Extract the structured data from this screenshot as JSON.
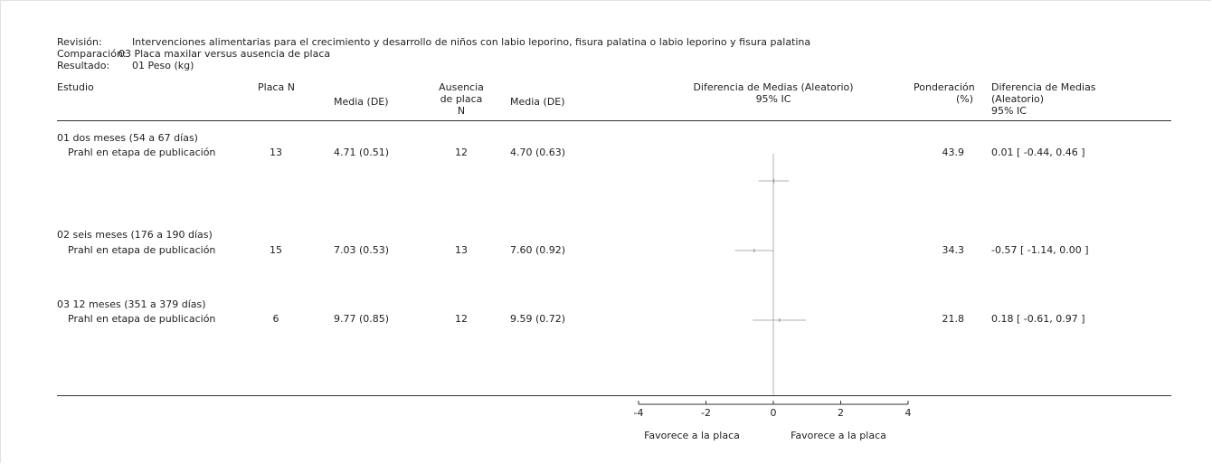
{
  "meta": {
    "review_label": "Revisión:",
    "review_value": "Intervenciones alimentarias para el crecimiento y desarrollo de niños con labio leporino, fisura palatina o labio leporino y fisura palatina",
    "comparison_label": "Comparación:",
    "comparison_value": "03 Placa maxilar versus ausencia de placa",
    "outcome_label": "Resultado:",
    "outcome_value": "01 Peso (kg)"
  },
  "headers": {
    "study": "Estudio",
    "n1": "Placa N",
    "mean1": "Media (DE)",
    "n2_line1": "Ausencia",
    "n2_line2": "de placa",
    "n2_line3": "N",
    "mean2": "Media (DE)",
    "plot_line1": "Diferencia de Medias  (Aleatorio)",
    "plot_line2": "95% IC",
    "weight_line1": "Ponderación",
    "weight_line2": "(%)",
    "md_line1": "Diferencia de Medias",
    "md_line2": "(Aleatorio)",
    "md_line3": "95% IC"
  },
  "groups": [
    {
      "title": "01 dos meses (54 a 67 días)",
      "study": "Prahl en etapa de publicación",
      "n1": "13",
      "mean1": "4.71  (0.51)",
      "n2": "12",
      "mean2": "4.70  (0.63)",
      "weight": "43.9",
      "md_text": "0.01 [ -0.44, 0.46 ]"
    },
    {
      "title": "02 seis meses (176 a 190 días)",
      "study": "Prahl en etapa de publicación",
      "n1": "15",
      "mean1": "7.03  (0.53)",
      "n2": "13",
      "mean2": "7.60  (0.92)",
      "weight": "34.3",
      "md_text": "-0.57 [ -1.14, 0.00 ]"
    },
    {
      "title": "03 12 meses (351 a 379 días)",
      "study": "Prahl en etapa de publicación",
      "n1": "6",
      "mean1": "9.77  (0.85)",
      "n2": "12",
      "mean2": "9.59  (0.72)",
      "weight": "21.8",
      "md_text": "0.18 [ -0.61, 0.97 ]"
    }
  ],
  "axis": {
    "ticks": [
      "-4",
      "-2",
      "0",
      "2",
      "4"
    ],
    "left_label": "Favorece a la placa",
    "right_label": "Favorece a la placa"
  },
  "chart_data": {
    "type": "forest",
    "x_range": [
      -4,
      4
    ],
    "ticks": [
      -4,
      -2,
      0,
      2,
      4
    ],
    "studies": [
      {
        "group": "01 dos meses (54 a 67 días)",
        "md": 0.01,
        "ci": [
          -0.44,
          0.46
        ],
        "weight": 43.9
      },
      {
        "group": "02 seis meses (176 a 190 días)",
        "md": -0.57,
        "ci": [
          -1.14,
          0.0
        ],
        "weight": 34.3
      },
      {
        "group": "03 12 meses (351 a 379 días)",
        "md": 0.18,
        "ci": [
          -0.61,
          0.97
        ],
        "weight": 21.8
      }
    ],
    "line_color": "#b0b0b0"
  }
}
